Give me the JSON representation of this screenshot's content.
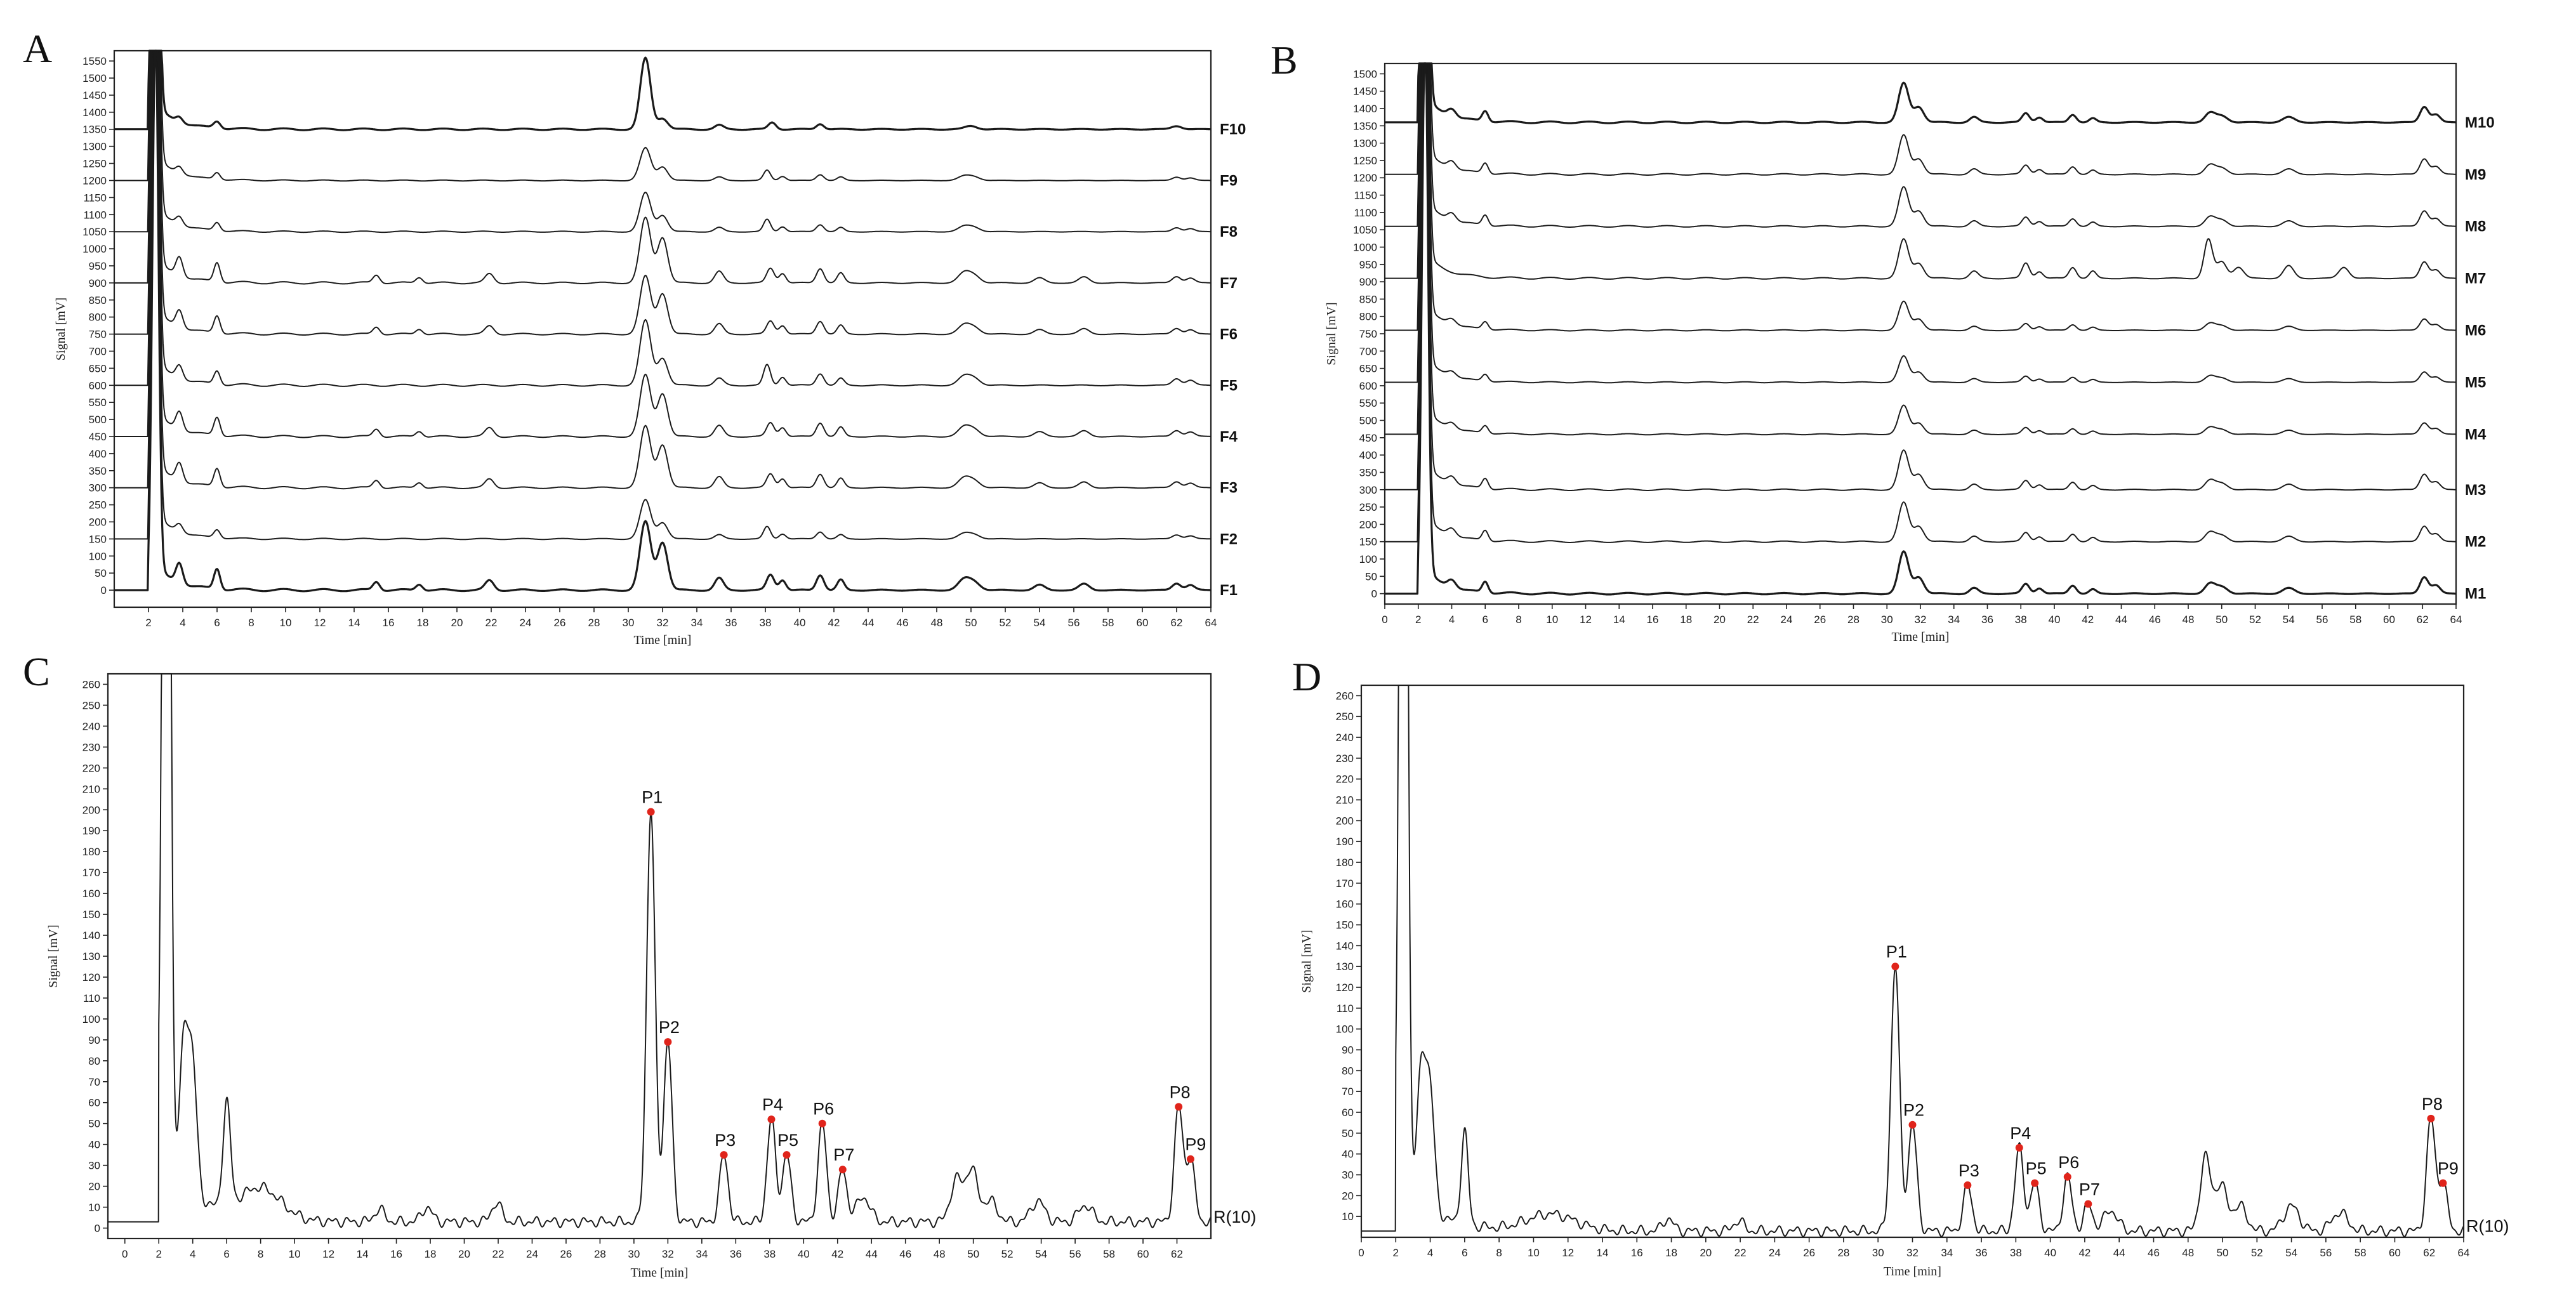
{
  "chart_data": [
    {
      "panel": "A",
      "type": "line",
      "title": "",
      "xlabel": "Time [min]",
      "ylabel": "Signal [mV]",
      "xlim": [
        0,
        64
      ],
      "ylim": [
        -50,
        1580
      ],
      "x_ticks": [
        2,
        4,
        6,
        8,
        10,
        12,
        14,
        16,
        18,
        20,
        22,
        24,
        26,
        28,
        30,
        32,
        34,
        36,
        38,
        40,
        42,
        44,
        46,
        48,
        50,
        52,
        54,
        56,
        58,
        60,
        62,
        64
      ],
      "y_ticks": [
        0,
        50,
        100,
        150,
        200,
        250,
        300,
        350,
        400,
        450,
        500,
        550,
        600,
        650,
        700,
        750,
        800,
        850,
        900,
        950,
        1000,
        1050,
        1100,
        1150,
        1200,
        1250,
        1300,
        1350,
        1400,
        1450,
        1500,
        1550
      ],
      "series": [
        {
          "name": "F1",
          "baseline": 0,
          "scale": 1.0,
          "variant": 0
        },
        {
          "name": "F2",
          "baseline": 150,
          "scale": 0.6,
          "variant": 1
        },
        {
          "name": "F3",
          "baseline": 300,
          "scale": 0.9,
          "variant": 0
        },
        {
          "name": "F4",
          "baseline": 450,
          "scale": 0.9,
          "variant": 0
        },
        {
          "name": "F5",
          "baseline": 600,
          "scale": 1.0,
          "variant": 1
        },
        {
          "name": "F6",
          "baseline": 750,
          "scale": 0.85,
          "variant": 0
        },
        {
          "name": "F7",
          "baseline": 900,
          "scale": 0.95,
          "variant": 0
        },
        {
          "name": "F8",
          "baseline": 1050,
          "scale": 0.6,
          "variant": 1
        },
        {
          "name": "F9",
          "baseline": 1200,
          "scale": 0.5,
          "variant": 1
        },
        {
          "name": "F10",
          "baseline": 1350,
          "scale": 0.8,
          "variant": 2
        }
      ]
    },
    {
      "panel": "B",
      "type": "line",
      "title": "",
      "xlabel": "Time [min]",
      "ylabel": "Signal [mV]",
      "xlim": [
        0,
        64
      ],
      "ylim": [
        -30,
        1530
      ],
      "x_ticks": [
        0,
        2,
        4,
        6,
        8,
        10,
        12,
        14,
        16,
        18,
        20,
        22,
        24,
        26,
        28,
        30,
        32,
        34,
        36,
        38,
        40,
        42,
        44,
        46,
        48,
        50,
        52,
        54,
        56,
        58,
        60,
        62,
        64
      ],
      "y_ticks": [
        0,
        50,
        100,
        150,
        200,
        250,
        300,
        350,
        400,
        450,
        500,
        550,
        600,
        650,
        700,
        750,
        800,
        850,
        900,
        950,
        1000,
        1050,
        1100,
        1150,
        1200,
        1250,
        1300,
        1350,
        1400,
        1450,
        1500
      ],
      "series": [
        {
          "name": "M1",
          "baseline": 0,
          "scale": 0.8,
          "variant": 3
        },
        {
          "name": "M2",
          "baseline": 150,
          "scale": 0.75,
          "variant": 3
        },
        {
          "name": "M3",
          "baseline": 300,
          "scale": 0.75,
          "variant": 3
        },
        {
          "name": "M4",
          "baseline": 460,
          "scale": 0.55,
          "variant": 3
        },
        {
          "name": "M5",
          "baseline": 610,
          "scale": 0.5,
          "variant": 3
        },
        {
          "name": "M6",
          "baseline": 760,
          "scale": 0.55,
          "variant": 3
        },
        {
          "name": "M7",
          "baseline": 910,
          "scale": 0.8,
          "variant": 4
        },
        {
          "name": "M8",
          "baseline": 1060,
          "scale": 0.75,
          "variant": 3
        },
        {
          "name": "M9",
          "baseline": 1210,
          "scale": 0.75,
          "variant": 3
        },
        {
          "name": "M10",
          "baseline": 1360,
          "scale": 0.75,
          "variant": 3
        }
      ]
    },
    {
      "panel": "C",
      "type": "line",
      "title": "",
      "xlabel": "Time [min]",
      "ylabel": "Signal [mV]",
      "xlim": [
        -1,
        64
      ],
      "ylim": [
        -5,
        265
      ],
      "x_ticks": [
        0,
        2,
        4,
        6,
        8,
        10,
        12,
        14,
        16,
        18,
        20,
        22,
        24,
        26,
        28,
        30,
        32,
        34,
        36,
        38,
        40,
        42,
        44,
        46,
        48,
        50,
        52,
        54,
        56,
        58,
        60,
        62
      ],
      "y_ticks": [
        0,
        10,
        20,
        30,
        40,
        50,
        60,
        70,
        80,
        90,
        100,
        110,
        120,
        130,
        140,
        150,
        160,
        170,
        180,
        190,
        200,
        210,
        220,
        230,
        240,
        250,
        260
      ],
      "series_label": "R(10)",
      "peaks": [
        {
          "name": "P1",
          "x": 31.0,
          "y": 199
        },
        {
          "name": "P2",
          "x": 32.0,
          "y": 89
        },
        {
          "name": "P3",
          "x": 35.3,
          "y": 35
        },
        {
          "name": "P4",
          "x": 38.1,
          "y": 52
        },
        {
          "name": "P5",
          "x": 39.0,
          "y": 35
        },
        {
          "name": "P6",
          "x": 41.1,
          "y": 50
        },
        {
          "name": "P7",
          "x": 42.3,
          "y": 28
        },
        {
          "name": "P8",
          "x": 62.1,
          "y": 58
        },
        {
          "name": "P9",
          "x": 62.8,
          "y": 33
        }
      ]
    },
    {
      "panel": "D",
      "type": "line",
      "title": "",
      "xlabel": "Time [min]",
      "ylabel": "Signal [mV]",
      "xlim": [
        0,
        64
      ],
      "ylim": [
        0,
        265
      ],
      "x_ticks": [
        0,
        2,
        4,
        6,
        8,
        10,
        12,
        14,
        16,
        18,
        20,
        22,
        24,
        26,
        28,
        30,
        32,
        34,
        36,
        38,
        40,
        42,
        44,
        46,
        48,
        50,
        52,
        54,
        56,
        58,
        60,
        62,
        64
      ],
      "y_ticks": [
        10,
        20,
        30,
        40,
        50,
        60,
        70,
        80,
        90,
        100,
        110,
        120,
        130,
        140,
        150,
        160,
        170,
        180,
        190,
        200,
        210,
        220,
        230,
        240,
        250,
        260
      ],
      "series_label": "R(10)",
      "peaks": [
        {
          "name": "P1",
          "x": 31.0,
          "y": 130
        },
        {
          "name": "P2",
          "x": 32.0,
          "y": 54
        },
        {
          "name": "P3",
          "x": 35.2,
          "y": 25
        },
        {
          "name": "P4",
          "x": 38.2,
          "y": 43
        },
        {
          "name": "P5",
          "x": 39.1,
          "y": 26
        },
        {
          "name": "P6",
          "x": 41.0,
          "y": 29
        },
        {
          "name": "P7",
          "x": 42.2,
          "y": 16
        },
        {
          "name": "P8",
          "x": 62.1,
          "y": 57
        },
        {
          "name": "P9",
          "x": 62.8,
          "y": 26
        }
      ]
    }
  ]
}
